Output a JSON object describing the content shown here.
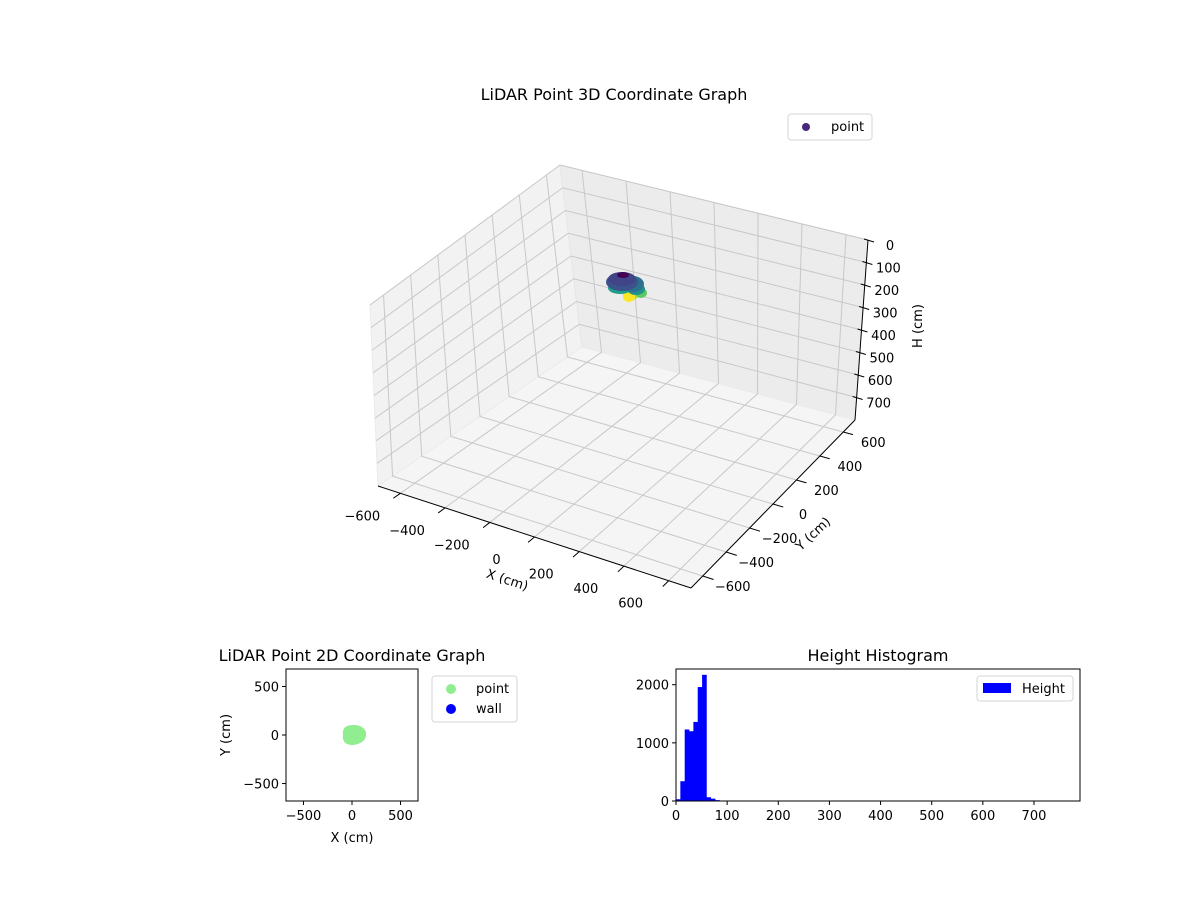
{
  "chart_data": [
    {
      "type": "scatter",
      "subtype": "3d",
      "title": "LiDAR Point 3D Coordinate Graph",
      "xlabel": "X (cm)",
      "ylabel": "Y (cm)",
      "zlabel": "H (cm)",
      "xlim": [
        -700,
        700
      ],
      "ylim": [
        -700,
        700
      ],
      "zlim": [
        800,
        0
      ],
      "x_ticks": [
        -600,
        -400,
        -200,
        0,
        200,
        400,
        600
      ],
      "y_ticks": [
        -600,
        -400,
        -200,
        0,
        200,
        400,
        600
      ],
      "z_ticks": [
        0,
        100,
        200,
        300,
        400,
        500,
        600,
        700
      ],
      "x_tick_labels": [
        "−600",
        "−400",
        "−200",
        "0",
        "200",
        "400",
        "600"
      ],
      "y_tick_labels": [
        "−600",
        "−400",
        "−200",
        "0",
        "200",
        "400",
        "600"
      ],
      "z_tick_labels": [
        "0",
        "100",
        "200",
        "300",
        "400",
        "500",
        "600",
        "700"
      ],
      "grid": true,
      "colormap": "viridis",
      "legend": {
        "position": "upper right",
        "entries": [
          {
            "label": "point",
            "color": "#482878"
          }
        ]
      },
      "series": [
        {
          "name": "point",
          "description": "dense cluster of points near origin, height ~0-80 cm, colored by height (viridis)",
          "x_range": [
            -100,
            110
          ],
          "y_range": [
            -90,
            90
          ],
          "h_range": [
            0,
            85
          ]
        }
      ]
    },
    {
      "type": "scatter",
      "title": "LiDAR Point 2D Coordinate Graph",
      "xlabel": "X (cm)",
      "ylabel": "Y (cm)",
      "xlim": [
        -680,
        680
      ],
      "ylim": [
        -680,
        680
      ],
      "x_ticks": [
        -500,
        0,
        500
      ],
      "y_ticks": [
        -500,
        0,
        500
      ],
      "x_tick_labels": [
        "−500",
        "0",
        "500"
      ],
      "y_tick_labels": [
        "−500",
        "0",
        "500"
      ],
      "grid": false,
      "legend": {
        "position": "outside right",
        "entries": [
          {
            "label": "point",
            "color": "#90ee90"
          },
          {
            "label": "wall",
            "color": "#0000ff"
          }
        ]
      },
      "series": [
        {
          "name": "point",
          "color": "#90ee90",
          "description": "filled blob centered near (10, 0), radius ~100 cm"
        },
        {
          "name": "wall",
          "color": "#0000ff",
          "points": []
        }
      ]
    },
    {
      "type": "bar",
      "subtype": "histogram",
      "title": "Height Histogram",
      "xlabel": "",
      "ylabel": "",
      "xlim": [
        0,
        790
      ],
      "ylim": [
        0,
        2270
      ],
      "x_ticks": [
        0,
        100,
        200,
        300,
        400,
        500,
        600,
        700
      ],
      "y_ticks": [
        0,
        1000,
        2000
      ],
      "x_tick_labels": [
        "0",
        "100",
        "200",
        "300",
        "400",
        "500",
        "600",
        "700"
      ],
      "y_tick_labels": [
        "0",
        "1000",
        "2000"
      ],
      "grid": false,
      "legend": {
        "position": "upper right",
        "entries": [
          {
            "label": "Height",
            "color": "#0000ff"
          }
        ]
      },
      "bin_width": 8.5,
      "bins": [
        0,
        8.5,
        17,
        25.5,
        34,
        42.5,
        51,
        59.5,
        68,
        76.5
      ],
      "values": [
        30,
        340,
        1230,
        1200,
        1360,
        1960,
        2170,
        65,
        40,
        15
      ],
      "color": "#0000ff"
    }
  ]
}
